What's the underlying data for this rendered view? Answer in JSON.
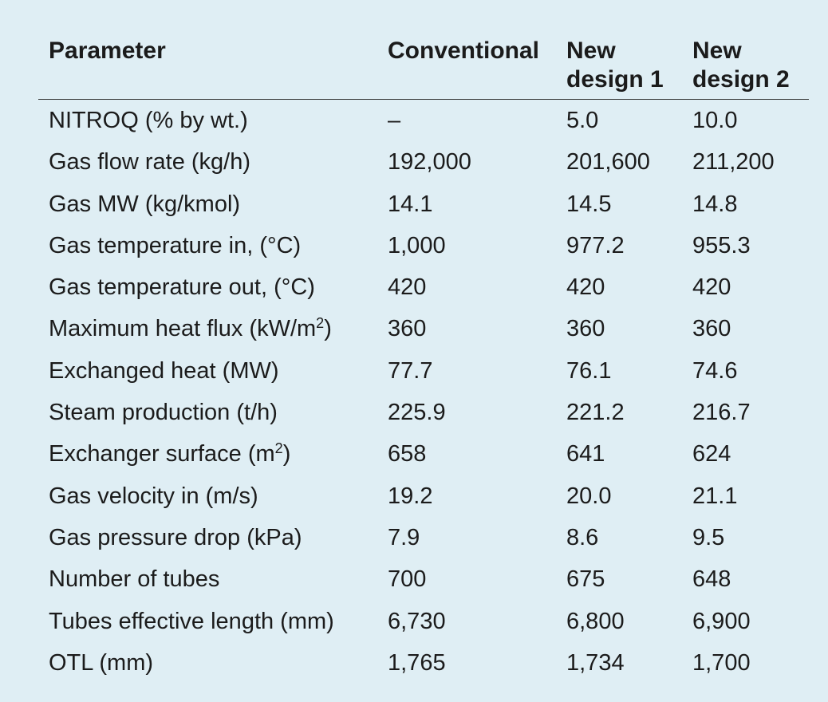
{
  "table": {
    "headers": [
      "Parameter",
      "Conventional",
      "New\ndesign 1",
      "New\ndesign 2"
    ],
    "rows": [
      {
        "parameter": "NITROQ (% by wt.)",
        "conventional": "–",
        "new_design_1": "5.0",
        "new_design_2": "10.0"
      },
      {
        "parameter": "Gas flow rate (kg/h)",
        "conventional": "192,000",
        "new_design_1": "201,600",
        "new_design_2": "211,200"
      },
      {
        "parameter": "Gas MW (kg/kmol)",
        "conventional": "14.1",
        "new_design_1": "14.5",
        "new_design_2": "14.8"
      },
      {
        "parameter": "Gas temperature in, (°C)",
        "conventional": "1,000",
        "new_design_1": "977.2",
        "new_design_2": "955.3"
      },
      {
        "parameter": "Gas temperature out, (°C)",
        "conventional": "420",
        "new_design_1": "420",
        "new_design_2": "420"
      },
      {
        "parameter": "Maximum heat flux (kW/m²)",
        "conventional": "360",
        "new_design_1": "360",
        "new_design_2": "360"
      },
      {
        "parameter": "Exchanged heat (MW)",
        "conventional": "77.7",
        "new_design_1": "76.1",
        "new_design_2": "74.6"
      },
      {
        "parameter": "Steam production (t/h)",
        "conventional": "225.9",
        "new_design_1": "221.2",
        "new_design_2": "216.7"
      },
      {
        "parameter": "Exchanger surface (m²)",
        "conventional": "658",
        "new_design_1": "641",
        "new_design_2": "624"
      },
      {
        "parameter": "Gas velocity in (m/s)",
        "conventional": "19.2",
        "new_design_1": "20.0",
        "new_design_2": "21.1"
      },
      {
        "parameter": "Gas pressure drop (kPa)",
        "conventional": "7.9",
        "new_design_1": "8.6",
        "new_design_2": "9.5"
      },
      {
        "parameter": "Number of tubes",
        "conventional": "700",
        "new_design_1": "675",
        "new_design_2": "648"
      },
      {
        "parameter": "Tubes effective length (mm)",
        "conventional": "6,730",
        "new_design_1": "6,800",
        "new_design_2": "6,900"
      },
      {
        "parameter": "OTL (mm)",
        "conventional": "1,765",
        "new_design_1": "1,734",
        "new_design_2": "1,700"
      }
    ]
  },
  "colors": {
    "background": "#dfeef4",
    "text": "#1b1b1b",
    "rule": "#333333"
  }
}
